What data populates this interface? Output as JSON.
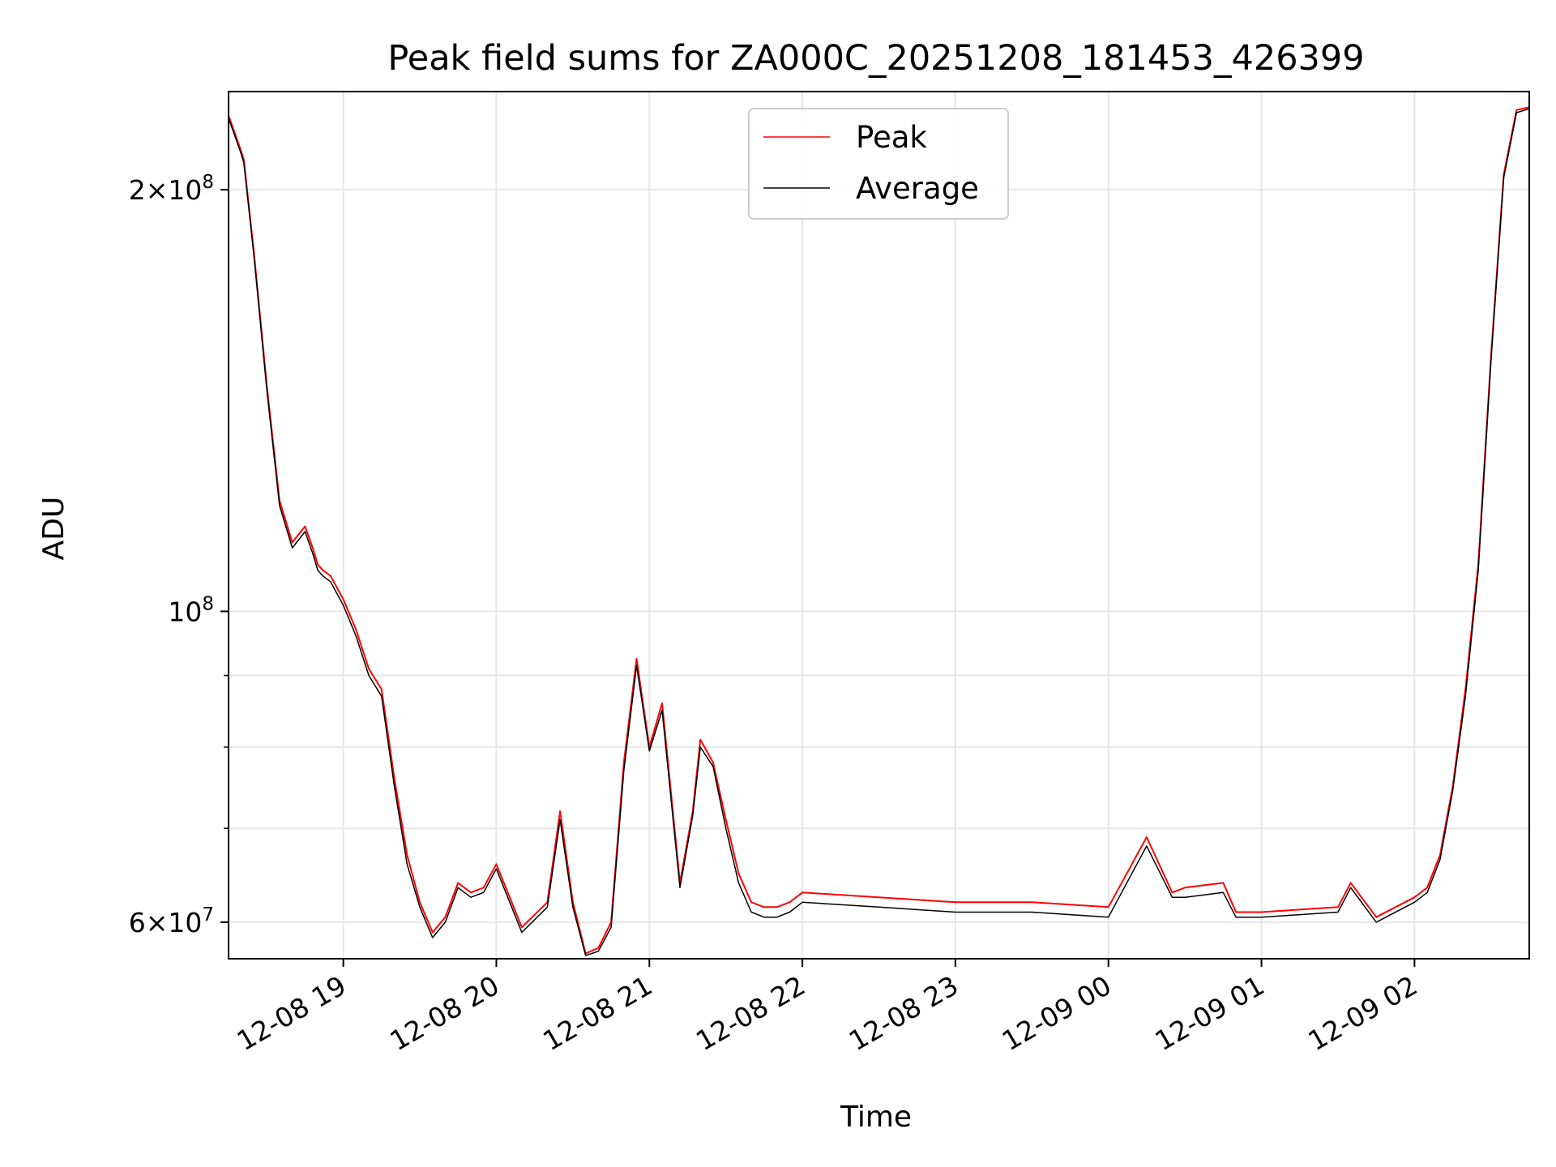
{
  "chart_data": {
    "type": "line",
    "title": "Peak field sums for ZA000C_20251208_181453_426399",
    "xlabel": "Time",
    "ylabel": "ADU",
    "yscale": "log",
    "ylim": [
      56500000,
      235000000
    ],
    "xlim": [
      "12-08 18:15",
      "12-09 02:45"
    ],
    "grid": true,
    "legend_position": "upper center",
    "x_ticks": [
      "12-08 19",
      "12-08 20",
      "12-08 21",
      "12-08 22",
      "12-08 23",
      "12-09 00",
      "12-09 01",
      "12-09 02"
    ],
    "y_ticks": [
      {
        "value": 200000000,
        "mantissa": "2",
        "exponent": "8"
      },
      {
        "value": 100000000,
        "mantissa": "",
        "exponent": "8"
      },
      {
        "value": 60000000,
        "mantissa": "6",
        "exponent": "7"
      }
    ],
    "x": [
      "12-08 18:15",
      "12-08 18:20",
      "12-08 18:21",
      "12-08 18:25",
      "12-08 18:30",
      "12-08 18:35",
      "12-08 18:40",
      "12-08 18:45",
      "12-08 18:48",
      "12-08 18:50",
      "12-08 18:52",
      "12-08 18:55",
      "12-08 19:00",
      "12-08 19:05",
      "12-08 19:10",
      "12-08 19:15",
      "12-08 19:20",
      "12-08 19:25",
      "12-08 19:30",
      "12-08 19:35",
      "12-08 19:40",
      "12-08 19:45",
      "12-08 19:50",
      "12-08 19:55",
      "12-08 20:00",
      "12-08 20:10",
      "12-08 20:20",
      "12-08 20:25",
      "12-08 20:30",
      "12-08 20:35",
      "12-08 20:40",
      "12-08 20:45",
      "12-08 20:50",
      "12-08 20:55",
      "12-08 21:00",
      "12-08 21:05",
      "12-08 21:12",
      "12-08 21:17",
      "12-08 21:20",
      "12-08 21:25",
      "12-08 21:30",
      "12-08 21:35",
      "12-08 21:40",
      "12-08 21:45",
      "12-08 21:50",
      "12-08 21:55",
      "12-08 22:00",
      "12-08 22:30",
      "12-08 23:00",
      "12-08 23:30",
      "12-09 00:00",
      "12-09 00:15",
      "12-09 00:25",
      "12-09 00:30",
      "12-09 00:45",
      "12-09 00:50",
      "12-09 00:55",
      "12-09 01:00",
      "12-09 01:30",
      "12-09 01:35",
      "12-09 01:45",
      "12-09 02:00",
      "12-09 02:05",
      "12-09 02:10",
      "12-09 02:15",
      "12-09 02:20",
      "12-09 02:25",
      "12-09 02:30",
      "12-09 02:35",
      "12-09 02:40",
      "12-09 02:45"
    ],
    "series": [
      {
        "name": "Peak",
        "color": "#ff0000",
        "values": [
          226000000,
          213000000,
          210000000,
          180000000,
          145000000,
          120000000,
          112000000,
          115000000,
          111000000,
          108000000,
          107000000,
          106000000,
          102000000,
          97000000,
          91000000,
          88000000,
          76000000,
          67000000,
          62000000,
          59000000,
          60500000,
          64000000,
          63000000,
          63500000,
          66000000,
          59500000,
          62000000,
          72000000,
          62000000,
          57000000,
          57500000,
          60000000,
          78000000,
          92500000,
          80000000,
          86000000,
          64000000,
          72000000,
          81000000,
          78000000,
          71000000,
          65000000,
          62000000,
          61500000,
          61500000,
          62000000,
          63000000,
          62500000,
          62000000,
          62000000,
          61500000,
          69000000,
          63000000,
          63500000,
          64000000,
          61000000,
          61000000,
          61000000,
          61500000,
          64000000,
          60500000,
          62500000,
          63500000,
          67000000,
          75000000,
          88000000,
          108000000,
          152000000,
          205000000,
          228000000,
          229000000
        ]
      },
      {
        "name": "Average",
        "color": "#000000",
        "values": [
          225000000,
          212000000,
          209000000,
          179000000,
          144000000,
          119000000,
          111000000,
          114000000,
          110000000,
          107000000,
          106000000,
          105000000,
          101000000,
          96000000,
          90000000,
          87000000,
          75000000,
          66000000,
          61500000,
          58500000,
          60000000,
          63500000,
          62500000,
          63000000,
          65500000,
          59000000,
          61500000,
          71000000,
          61500000,
          56800000,
          57200000,
          59500000,
          77000000,
          91500000,
          79500000,
          85000000,
          63500000,
          71500000,
          80000000,
          77500000,
          70000000,
          64000000,
          61000000,
          60500000,
          60500000,
          61000000,
          62000000,
          61500000,
          61000000,
          61000000,
          60500000,
          68000000,
          62500000,
          62500000,
          63000000,
          60500000,
          60500000,
          60500000,
          61000000,
          63500000,
          60000000,
          62000000,
          63000000,
          66500000,
          74500000,
          87000000,
          107000000,
          151000000,
          204000000,
          227000000,
          228500000
        ]
      }
    ]
  }
}
